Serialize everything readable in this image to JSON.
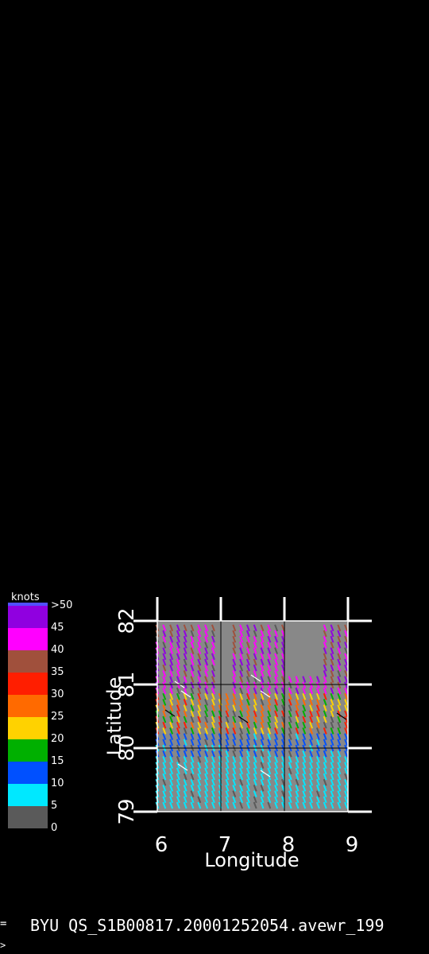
{
  "chart_data": {
    "type": "scatter",
    "description_units": "knots",
    "xlabel": "Longitude",
    "ylabel": "Latitude",
    "xlim": [
      6,
      9
    ],
    "ylim": [
      79,
      82
    ],
    "xticks": [
      "6",
      "7",
      "8",
      "9"
    ],
    "yticks": [
      "79",
      "80",
      "81",
      "82"
    ],
    "grid": true,
    "background": "#888888",
    "colorbar": {
      "title": "knots",
      "labels": [
        ">50",
        "45",
        "40",
        "35",
        "30",
        "25",
        "20",
        "15",
        "10",
        "5",
        "0"
      ],
      "bins": [
        {
          "range": "0-5",
          "color": "#5a5a5a"
        },
        {
          "range": "5-10",
          "color": "#00e8ff"
        },
        {
          "range": "10-15",
          "color": "#0050ff"
        },
        {
          "range": "15-20",
          "color": "#00b000"
        },
        {
          "range": "20-25",
          "color": "#ffd200"
        },
        {
          "range": "25-30",
          "color": "#ff6a00"
        },
        {
          "range": "30-35",
          "color": "#ff1e00"
        },
        {
          "range": "35-40",
          "color": "#a0503c"
        },
        {
          "range": "40-45",
          "color": "#ff00ff"
        },
        {
          "range": "45-50",
          "color": "#9000e0"
        },
        {
          "range": ">50",
          "color": "#5050ff"
        }
      ]
    },
    "swaths": [
      {
        "region": "north",
        "lat_range": [
          80.8,
          82.0
        ],
        "speed_knots": "40-50"
      },
      {
        "region": "middle",
        "lat_range": [
          80.2,
          80.8
        ],
        "speed_knots": "15-35"
      },
      {
        "region": "south",
        "lat_range": [
          79.0,
          80.2
        ],
        "speed_knots": "5-15"
      }
    ]
  },
  "footer": {
    "mark": "=",
    "text": "BYU QS_S1B00817.20001252054.avewr_199"
  },
  "prompt": ">"
}
